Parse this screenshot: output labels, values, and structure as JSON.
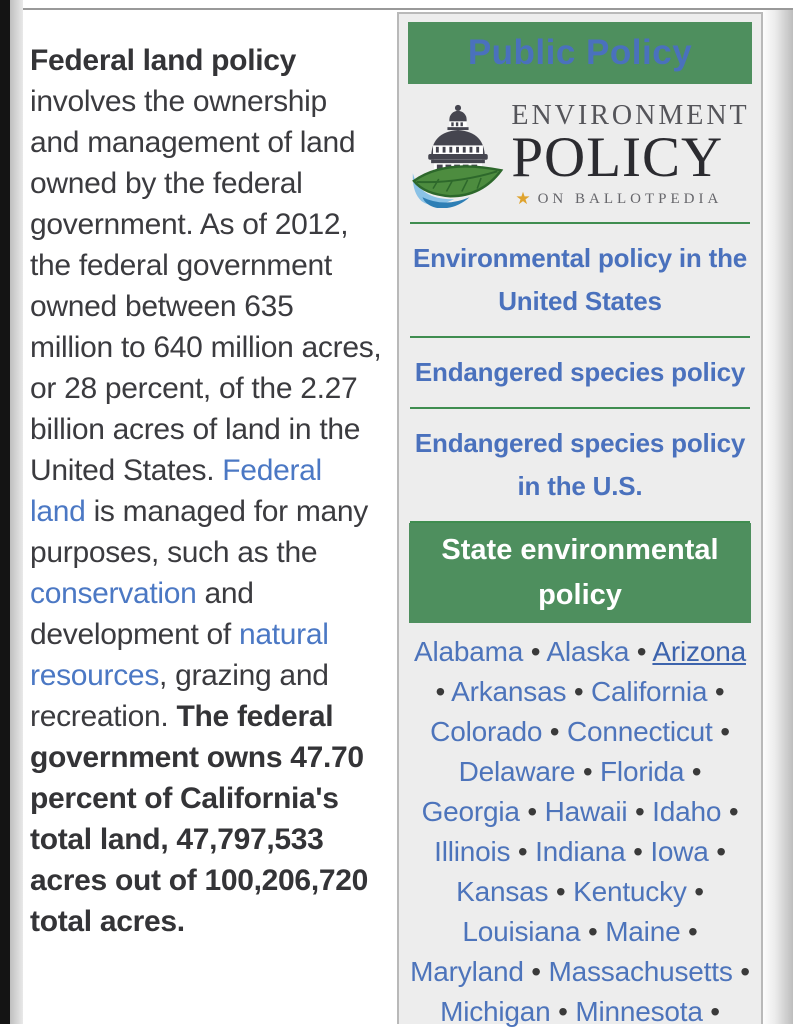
{
  "article": {
    "intro_segments": [
      {
        "text": "Federal land policy",
        "style": "bold",
        "name": "article-title-bold"
      },
      {
        "text": " involves the ownership and management of land owned by the federal government. As of 2012, the federal government owned between 635 million to 640 million acres, or 28 percent, of the 2.27 billion acres of land in the United States. ",
        "style": "plain",
        "name": "body-text"
      },
      {
        "text": "Federal land",
        "style": "link",
        "name": "federal-land-link"
      },
      {
        "text": " is managed for many purposes, such as the ",
        "style": "plain",
        "name": "body-text"
      },
      {
        "text": "conservation",
        "style": "link",
        "name": "conservation-link"
      },
      {
        "text": " and development of ",
        "style": "plain",
        "name": "body-text"
      },
      {
        "text": "natural resources",
        "style": "link",
        "name": "natural-resources-link"
      },
      {
        "text": ", grazing and recreation. ",
        "style": "plain",
        "name": "body-text"
      },
      {
        "text": "The federal government owns 47.70 percent of California's total land, 47,797,533 acres out of 100,206,720 total acres.",
        "style": "bold",
        "name": "california-land-stat-bold"
      }
    ]
  },
  "sidebar": {
    "header": "Public Policy",
    "logo": {
      "line1": "ENVIRONMENT",
      "line2": "POLICY",
      "star": "★",
      "tagline": "ON BALLOTPEDIA"
    },
    "links": [
      "Environmental policy in the United States",
      "Endangered species policy",
      "Endangered species policy in the U.S."
    ],
    "section_header": "State environmental policy",
    "separator": "•",
    "trailing_separator": true,
    "active_state": "Arizona",
    "states": [
      "Alabama",
      "Alaska",
      "Arizona",
      "Arkansas",
      "California",
      "Colorado",
      "Connecticut",
      "Delaware",
      "Florida",
      "Georgia",
      "Hawaii",
      "Idaho",
      "Illinois",
      "Indiana",
      "Iowa",
      "Kansas",
      "Kentucky",
      "Louisiana",
      "Maine",
      "Maryland",
      "Massachusetts",
      "Michigan",
      "Minnesota"
    ]
  },
  "colors": {
    "green_header": "#4E8F5E",
    "green_rule": "#3F8D50",
    "link_blue": "#4A71BD",
    "body_link_blue": "#4B78C4",
    "state_link_blue": "#4D74BB",
    "body_text": "#3B3B3F",
    "infobox_bg": "#EDEDED",
    "star_gold": "#DFA32E"
  }
}
